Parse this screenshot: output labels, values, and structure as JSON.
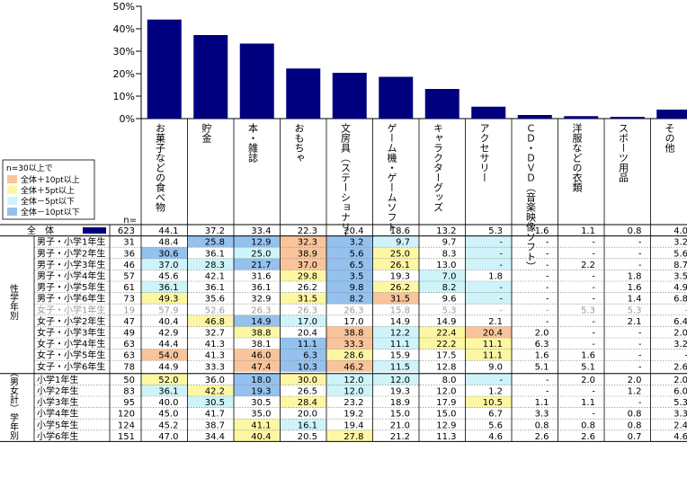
{
  "chart_data": {
    "type": "bar",
    "ylim": [
      0,
      50
    ],
    "y_ticks": [
      "0%",
      "10%",
      "20%",
      "30%",
      "40%",
      "50%"
    ],
    "bar_color": "#00007f",
    "categories": [
      "お菓子などの食べ物",
      "貯金",
      "本・雑誌",
      "おもちゃ",
      "文房具（ステーショナリー）",
      "ゲーム機・ゲームソフト",
      "キャラクターグッズ",
      "アクセサリー",
      "ＣＤ・ＤＶＤ（音楽映像ソフト）",
      "洋服などの衣類",
      "スポーツ用品",
      "その他"
    ],
    "values": [
      44.1,
      37.2,
      33.4,
      22.3,
      20.4,
      18.6,
      13.2,
      5.3,
      1.6,
      1.1,
      0.8,
      4.0
    ]
  },
  "legend": {
    "title": "n=30以上で",
    "items": [
      {
        "label": "全体＋10pt以上",
        "color": "#f9c49b"
      },
      {
        "label": "全体＋5pt以上",
        "color": "#fdf7a4"
      },
      {
        "label": "全体－5pt以下",
        "color": "#cef4fa"
      },
      {
        "label": "全体－10pt以下",
        "color": "#94c1ed"
      }
    ]
  },
  "colors": {
    "h10": "#f9c49b",
    "h5": "#fdf7a4",
    "l5": "#cef4fa",
    "l10": "#94c1ed"
  },
  "table": {
    "n_header": "n=",
    "total_label": "全　体",
    "total_n": "623",
    "total_values": [
      "44.1",
      "37.2",
      "33.4",
      "22.3",
      "20.4",
      "18.6",
      "13.2",
      "5.3",
      "1.6",
      "1.1",
      "0.8",
      "4.0"
    ],
    "groups": [
      {
        "label": "性学年別",
        "rows": [
          {
            "label": "男子・小学1年生",
            "n": "31",
            "values": [
              "48.4",
              "25.8",
              "12.9",
              "32.3",
              "3.2",
              "9.7",
              "9.7",
              "-",
              "-",
              "-",
              "-",
              "3.2"
            ],
            "colors": [
              "",
              "l10",
              "l10",
              "h10",
              "l10",
              "l5",
              "",
              "l5",
              "",
              "",
              "",
              ""
            ]
          },
          {
            "label": "男子・小学2年生",
            "n": "36",
            "values": [
              "30.6",
              "36.1",
              "25.0",
              "38.9",
              "5.6",
              "25.0",
              "8.3",
              "-",
              "-",
              "-",
              "-",
              "5.6"
            ],
            "colors": [
              "l10",
              "",
              "l5",
              "h10",
              "l10",
              "h5",
              "",
              "l5",
              "",
              "",
              "",
              ""
            ]
          },
          {
            "label": "男子・小学3年生",
            "n": "46",
            "values": [
              "37.0",
              "28.3",
              "21.7",
              "37.0",
              "6.5",
              "26.1",
              "13.0",
              "-",
              "-",
              "2.2",
              "-",
              "8.7"
            ],
            "colors": [
              "l5",
              "l5",
              "l10",
              "h10",
              "l10",
              "h5",
              "",
              "l5",
              "",
              "",
              "",
              ""
            ]
          },
          {
            "label": "男子・小学4年生",
            "n": "57",
            "values": [
              "45.6",
              "42.1",
              "31.6",
              "29.8",
              "3.5",
              "19.3",
              "7.0",
              "1.8",
              "-",
              "-",
              "1.8",
              "3.5"
            ],
            "colors": [
              "",
              "",
              "",
              "h5",
              "l10",
              "",
              "l5",
              "",
              "",
              "",
              "",
              ""
            ]
          },
          {
            "label": "男子・小学5年生",
            "n": "61",
            "values": [
              "36.1",
              "36.1",
              "36.1",
              "26.2",
              "9.8",
              "26.2",
              "8.2",
              "-",
              "-",
              "-",
              "1.6",
              "4.9"
            ],
            "colors": [
              "l5",
              "",
              "",
              "",
              "l10",
              "h5",
              "l5",
              "l5",
              "",
              "",
              "",
              ""
            ]
          },
          {
            "label": "男子・小学6年生",
            "n": "73",
            "values": [
              "49.3",
              "35.6",
              "32.9",
              "31.5",
              "8.2",
              "31.5",
              "9.6",
              "-",
              "-",
              "-",
              "1.4",
              "6.8"
            ],
            "colors": [
              "h5",
              "",
              "",
              "h5",
              "l10",
              "h10",
              "",
              "l5",
              "",
              "",
              "",
              ""
            ]
          },
          {
            "label": "女子・小学1年生",
            "n": "19",
            "values": [
              "57.9",
              "52.6",
              "26.3",
              "26.3",
              "26.3",
              "15.8",
              "5.3",
              "-",
              "-",
              "5.3",
              "5.3",
              "-"
            ],
            "colors": [
              "",
              "",
              "",
              "",
              "",
              "",
              "",
              "",
              "",
              "",
              "",
              ""
            ],
            "muted": true
          },
          {
            "label": "女子・小学2年生",
            "n": "47",
            "values": [
              "40.4",
              "46.8",
              "14.9",
              "17.0",
              "17.0",
              "14.9",
              "14.9",
              "2.1",
              "-",
              "-",
              "2.1",
              "6.4"
            ],
            "colors": [
              "",
              "h5",
              "l10",
              "l5",
              "",
              "",
              "",
              "",
              "",
              "",
              "",
              ""
            ]
          },
          {
            "label": "女子・小学3年生",
            "n": "49",
            "values": [
              "42.9",
              "32.7",
              "38.8",
              "20.4",
              "38.8",
              "12.2",
              "22.4",
              "20.4",
              "2.0",
              "-",
              "-",
              "2.0"
            ],
            "colors": [
              "",
              "",
              "h5",
              "",
              "h10",
              "l5",
              "h5",
              "h10",
              "",
              "",
              "",
              ""
            ]
          },
          {
            "label": "女子・小学4年生",
            "n": "63",
            "values": [
              "44.4",
              "41.3",
              "38.1",
              "11.1",
              "33.3",
              "11.1",
              "22.2",
              "11.1",
              "6.3",
              "-",
              "-",
              "3.2"
            ],
            "colors": [
              "",
              "",
              "",
              "l10",
              "h10",
              "l5",
              "h5",
              "h5",
              "",
              "",
              "",
              ""
            ]
          },
          {
            "label": "女子・小学5年生",
            "n": "63",
            "values": [
              "54.0",
              "41.3",
              "46.0",
              "6.3",
              "28.6",
              "15.9",
              "17.5",
              "11.1",
              "1.6",
              "1.6",
              "-",
              "-"
            ],
            "colors": [
              "h10",
              "",
              "h10",
              "l10",
              "h5",
              "",
              "",
              "h5",
              "",
              "",
              "",
              ""
            ]
          },
          {
            "label": "女子・小学6年生",
            "n": "78",
            "values": [
              "44.9",
              "33.3",
              "47.4",
              "10.3",
              "46.2",
              "11.5",
              "12.8",
              "9.0",
              "5.1",
              "5.1",
              "-",
              "2.6"
            ],
            "colors": [
              "",
              "",
              "h10",
              "l10",
              "h10",
              "l5",
              "",
              "",
              "",
              "",
              "",
              ""
            ]
          }
        ]
      },
      {
        "label": "（男女計）学年別",
        "rows": [
          {
            "label": "小学1年生",
            "n": "50",
            "values": [
              "52.0",
              "36.0",
              "18.0",
              "30.0",
              "12.0",
              "12.0",
              "8.0",
              "-",
              "-",
              "2.0",
              "2.0",
              "2.0"
            ],
            "colors": [
              "h5",
              "",
              "l10",
              "h5",
              "l5",
              "l5",
              "",
              "l5",
              "",
              "",
              "",
              ""
            ]
          },
          {
            "label": "小学2年生",
            "n": "83",
            "values": [
              "36.1",
              "42.2",
              "19.3",
              "26.5",
              "12.0",
              "19.3",
              "12.0",
              "1.2",
              "-",
              "-",
              "1.2",
              "6.0"
            ],
            "colors": [
              "l5",
              "h5",
              "l10",
              "",
              "l5",
              "",
              "",
              "",
              "",
              "",
              "",
              ""
            ]
          },
          {
            "label": "小学3年生",
            "n": "95",
            "values": [
              "40.0",
              "30.5",
              "30.5",
              "28.4",
              "23.2",
              "18.9",
              "17.9",
              "10.5",
              "1.1",
              "1.1",
              "-",
              "5.3"
            ],
            "colors": [
              "",
              "l5",
              "",
              "h5",
              "",
              "",
              "",
              "h5",
              "",
              "",
              "",
              ""
            ]
          },
          {
            "label": "小学4年生",
            "n": "120",
            "values": [
              "45.0",
              "41.7",
              "35.0",
              "20.0",
              "19.2",
              "15.0",
              "15.0",
              "6.7",
              "3.3",
              "-",
              "0.8",
              "3.3"
            ],
            "colors": [
              "",
              "",
              "",
              "",
              "",
              "",
              "",
              "",
              "",
              "",
              "",
              ""
            ]
          },
          {
            "label": "小学5年生",
            "n": "124",
            "values": [
              "45.2",
              "38.7",
              "41.1",
              "16.1",
              "19.4",
              "21.0",
              "12.9",
              "5.6",
              "0.8",
              "0.8",
              "0.8",
              "2.4"
            ],
            "colors": [
              "",
              "",
              "h5",
              "l5",
              "",
              "",
              "",
              "",
              "",
              "",
              "",
              ""
            ]
          },
          {
            "label": "小学6年生",
            "n": "151",
            "values": [
              "47.0",
              "34.4",
              "40.4",
              "20.5",
              "27.8",
              "21.2",
              "11.3",
              "4.6",
              "2.6",
              "2.6",
              "0.7",
              "4.6"
            ],
            "colors": [
              "",
              "",
              "h5",
              "",
              "h5",
              "",
              "",
              "",
              "",
              "",
              "",
              ""
            ]
          }
        ]
      }
    ]
  }
}
